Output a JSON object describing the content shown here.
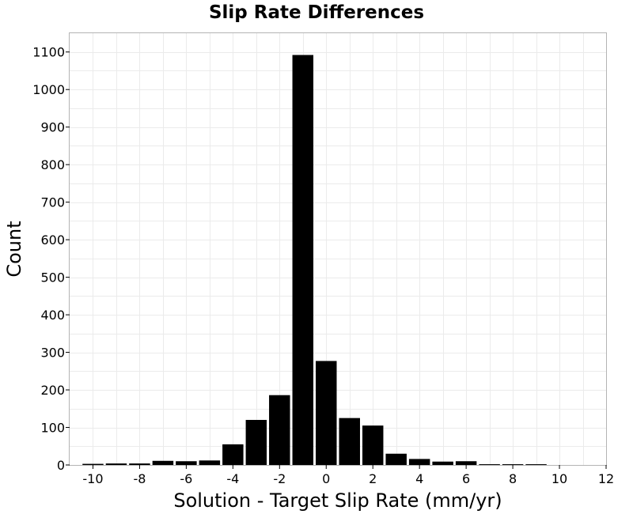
{
  "colors": {
    "bar": "#000000",
    "grid": "#ebebeb",
    "frame": "#b4b4b4",
    "background": "#ffffff"
  },
  "chart_data": {
    "type": "bar",
    "title": "Slip Rate Differences",
    "xlabel": "Solution - Target Slip Rate (mm/yr)",
    "ylabel": "Count",
    "bin_width": 1,
    "xlim": [
      -11,
      12
    ],
    "ylim": [
      0,
      1150
    ],
    "x_ticks": [
      -10,
      -8,
      -6,
      -4,
      -2,
      0,
      2,
      4,
      6,
      8,
      10,
      12
    ],
    "y_ticks": [
      0,
      100,
      200,
      300,
      400,
      500,
      600,
      700,
      800,
      900,
      1000,
      1100
    ],
    "x_tick_labels": [
      "-10",
      "-8",
      "-6",
      "-4",
      "-2",
      "0",
      "2",
      "4",
      "6",
      "8",
      "10",
      "12"
    ],
    "y_tick_labels": [
      "0",
      "100",
      "200",
      "300",
      "400",
      "500",
      "600",
      "700",
      "800",
      "900",
      "1000",
      "1100"
    ],
    "grid": true,
    "bins": [
      {
        "x": -10,
        "value": 3
      },
      {
        "x": -9,
        "value": 4
      },
      {
        "x": -8,
        "value": 4
      },
      {
        "x": -7,
        "value": 11
      },
      {
        "x": -6,
        "value": 10
      },
      {
        "x": -5,
        "value": 12
      },
      {
        "x": -4,
        "value": 55
      },
      {
        "x": -3,
        "value": 120
      },
      {
        "x": -2,
        "value": 186
      },
      {
        "x": -1,
        "value": 1092
      },
      {
        "x": 0,
        "value": 277
      },
      {
        "x": 1,
        "value": 125
      },
      {
        "x": 2,
        "value": 105
      },
      {
        "x": 3,
        "value": 30
      },
      {
        "x": 4,
        "value": 16
      },
      {
        "x": 5,
        "value": 9
      },
      {
        "x": 6,
        "value": 10
      },
      {
        "x": 7,
        "value": 2
      },
      {
        "x": 8,
        "value": 2
      },
      {
        "x": 9,
        "value": 2
      }
    ]
  }
}
